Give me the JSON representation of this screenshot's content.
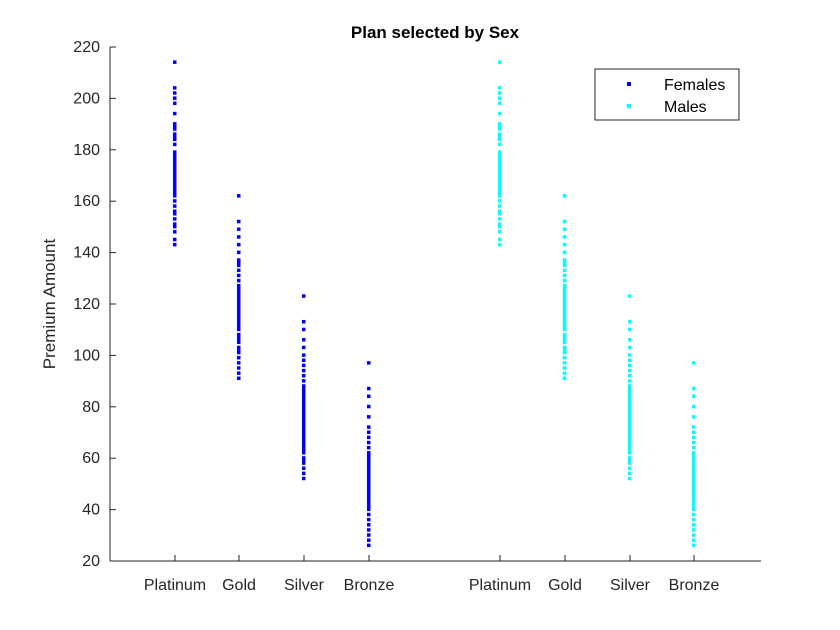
{
  "chart_data": {
    "type": "scatter",
    "title": "Plan selected by Sex",
    "ylabel": "Premium Amount",
    "xlabel": "",
    "ylim": [
      20,
      220
    ],
    "yticks": [
      20,
      40,
      60,
      80,
      100,
      120,
      140,
      160,
      180,
      200,
      220
    ],
    "x_tick_labels": [
      "Platinum",
      "Gold",
      "Silver",
      "Bronze",
      "Platinum",
      "Gold",
      "Silver",
      "Bronze"
    ],
    "grid": false,
    "legend_position": "top-right",
    "colors": {
      "Females": "#0000ff",
      "Males": "#00ffff",
      "axis": "#262626"
    },
    "series": [
      {
        "name": "Females",
        "groups": [
          {
            "category": "Platinum",
            "values": [
              143,
              145,
              148,
              150,
              151,
              153,
              155,
              156,
              158,
              160,
              162,
              163,
              164,
              165,
              166,
              167,
              168,
              169,
              170,
              171,
              172,
              173,
              174,
              175,
              176,
              177,
              178,
              179,
              182,
              184,
              185,
              186,
              188,
              189,
              190,
              194,
              198,
              200,
              202,
              204,
              214
            ]
          },
          {
            "category": "Gold",
            "values": [
              91,
              93,
              95,
              97,
              99,
              101,
              102,
              103,
              105,
              106,
              107,
              108,
              110,
              111,
              112,
              113,
              114,
              115,
              116,
              117,
              118,
              119,
              120,
              121,
              122,
              123,
              124,
              125,
              126,
              127,
              129,
              131,
              133,
              135,
              136,
              137,
              140,
              143,
              146,
              149,
              152,
              162
            ]
          },
          {
            "category": "Silver",
            "values": [
              52,
              54,
              56,
              58,
              59,
              60,
              62,
              63,
              64,
              65,
              66,
              67,
              68,
              69,
              70,
              71,
              72,
              73,
              74,
              75,
              76,
              77,
              78,
              79,
              80,
              81,
              82,
              83,
              84,
              85,
              86,
              87,
              88,
              90,
              92,
              94,
              96,
              98,
              100,
              103,
              106,
              110,
              113,
              123
            ]
          },
          {
            "category": "Bronze",
            "values": [
              26,
              28,
              30,
              32,
              34,
              36,
              38,
              40,
              41,
              42,
              43,
              44,
              45,
              46,
              47,
              48,
              49,
              50,
              51,
              52,
              53,
              54,
              55,
              56,
              57,
              58,
              59,
              60,
              61,
              62,
              64,
              66,
              68,
              70,
              72,
              76,
              80,
              84,
              87,
              97
            ]
          }
        ]
      },
      {
        "name": "Males",
        "groups": [
          {
            "category": "Platinum",
            "values": [
              143,
              145,
              148,
              150,
              151,
              153,
              155,
              156,
              158,
              160,
              162,
              163,
              164,
              165,
              166,
              167,
              168,
              169,
              170,
              171,
              172,
              173,
              174,
              175,
              176,
              177,
              178,
              179,
              182,
              184,
              185,
              186,
              188,
              189,
              190,
              194,
              198,
              200,
              202,
              204,
              214
            ]
          },
          {
            "category": "Gold",
            "values": [
              91,
              93,
              95,
              97,
              99,
              101,
              102,
              103,
              105,
              106,
              107,
              108,
              110,
              111,
              112,
              113,
              114,
              115,
              116,
              117,
              118,
              119,
              120,
              121,
              122,
              123,
              124,
              125,
              126,
              127,
              129,
              131,
              133,
              135,
              136,
              137,
              140,
              143,
              146,
              149,
              152,
              162
            ]
          },
          {
            "category": "Silver",
            "values": [
              52,
              54,
              56,
              58,
              59,
              60,
              62,
              63,
              64,
              65,
              66,
              67,
              68,
              69,
              70,
              71,
              72,
              73,
              74,
              75,
              76,
              77,
              78,
              79,
              80,
              81,
              82,
              83,
              84,
              85,
              86,
              87,
              88,
              90,
              92,
              94,
              96,
              98,
              100,
              103,
              106,
              110,
              113,
              123
            ]
          },
          {
            "category": "Bronze",
            "values": [
              26,
              28,
              30,
              32,
              34,
              36,
              38,
              40,
              41,
              42,
              43,
              44,
              45,
              46,
              47,
              48,
              49,
              50,
              51,
              52,
              53,
              54,
              55,
              56,
              57,
              58,
              59,
              60,
              61,
              62,
              64,
              66,
              68,
              70,
              72,
              76,
              80,
              84,
              87,
              97
            ]
          }
        ]
      }
    ]
  }
}
